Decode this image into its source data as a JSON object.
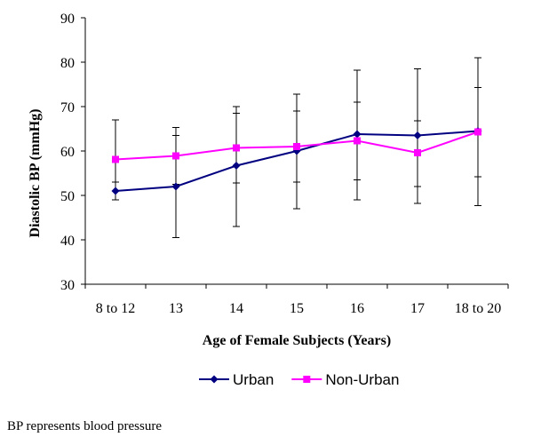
{
  "chart_data": {
    "type": "line",
    "categories": [
      "8 to 12",
      "13",
      "14",
      "15",
      "16",
      "17",
      "18 to 20"
    ],
    "series": [
      {
        "name": "Urban",
        "color": "#000080",
        "marker": "diamond",
        "values": [
          51.0,
          52.0,
          56.7,
          60.0,
          63.8,
          63.5,
          64.5
        ],
        "error_low": [
          49.0,
          40.5,
          43.0,
          47.0,
          49.0,
          48.2,
          47.7
        ],
        "error_high": [
          53.0,
          63.5,
          70.0,
          72.8,
          78.2,
          78.5,
          81.0
        ]
      },
      {
        "name": "Non-Urban",
        "color": "#ff00ff",
        "marker": "square",
        "values": [
          58.1,
          58.9,
          60.7,
          61.0,
          62.3,
          59.6,
          64.3
        ],
        "error_low": [
          49.0,
          52.5,
          52.8,
          53.0,
          53.5,
          52.0,
          54.2
        ],
        "error_high": [
          67.0,
          65.3,
          68.5,
          69.0,
          71.0,
          66.8,
          74.3
        ]
      }
    ],
    "xlabel": "Age of Female Subjects (Years)",
    "ylabel": "Diastolic BP (mmHg)",
    "ylim": [
      30,
      90
    ],
    "yticks": [
      "30",
      "40",
      "50",
      "60",
      "70",
      "80",
      "90"
    ],
    "grid": false,
    "legend": "bottom"
  },
  "footnote": "BP represents blood pressure"
}
